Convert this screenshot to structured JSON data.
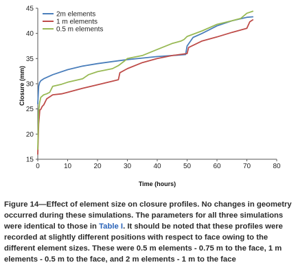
{
  "chart_data": {
    "type": "line",
    "title": "",
    "xlabel": "Time (hours)",
    "ylabel": "Closure (mm)",
    "xlim": [
      0,
      80
    ],
    "ylim": [
      15,
      45
    ],
    "xticks": [
      0,
      10,
      20,
      30,
      40,
      50,
      60,
      70,
      80
    ],
    "yticks": [
      15,
      20,
      25,
      30,
      35,
      40,
      45
    ],
    "grid": false,
    "legend_position": "top-left",
    "series": [
      {
        "name": "2m elements",
        "color": "#4a7ebb",
        "x": [
          0,
          0.3,
          0.6,
          1,
          2,
          5,
          10,
          15,
          20,
          25,
          30,
          35,
          40,
          45,
          49.5,
          50,
          52,
          55,
          60,
          65,
          70,
          72
        ],
        "y": [
          26,
          29.5,
          30.2,
          30.6,
          31,
          31.8,
          32.8,
          33.5,
          34,
          34.4,
          34.8,
          35.1,
          35.4,
          35.6,
          35.8,
          37.5,
          39.2,
          40,
          41.5,
          42.5,
          43.2,
          43.3
        ]
      },
      {
        "name": "1 m elements",
        "color": "#be4b48",
        "x": [
          0,
          0.3,
          0.7,
          1,
          1.5,
          2,
          3,
          5,
          8,
          10,
          15,
          20,
          25,
          27,
          27.5,
          30,
          35,
          40,
          45,
          50,
          50.5,
          55,
          60,
          65,
          70,
          71,
          72
        ],
        "y": [
          16,
          22,
          24.8,
          24.9,
          25.5,
          25.8,
          27,
          27.8,
          28,
          28.3,
          29.1,
          29.8,
          30.5,
          30.8,
          32.2,
          33,
          34.2,
          35,
          35.6,
          36,
          37.2,
          38.5,
          39.3,
          40.2,
          41,
          42.3,
          42.7
        ]
      },
      {
        "name": "0.5 m elements",
        "color": "#98b954",
        "x": [
          0,
          0.3,
          0.6,
          1,
          2,
          3,
          4,
          5,
          8,
          10,
          15,
          17,
          20,
          25,
          27,
          29,
          30,
          35,
          40,
          45,
          48,
          49,
          50,
          55,
          60,
          65,
          68,
          70,
          72
        ],
        "y": [
          17,
          24.5,
          26.2,
          27.3,
          27.8,
          28,
          28.3,
          29.5,
          29.9,
          30.3,
          31,
          31.8,
          32.4,
          33,
          33.6,
          34.5,
          35,
          35.6,
          36.8,
          38,
          38.5,
          38.8,
          39.4,
          40.5,
          41.8,
          42.5,
          43,
          44,
          44.4
        ]
      }
    ]
  },
  "caption": {
    "part1": "Figure 14—Effect of element size on closure profiles. No changes in geometry occurred during these simulations. The parameters for all three simulations were identical to those in ",
    "ref": "Table I",
    "part2": ". It should be noted that these profiles were recorded at slightly different positions with respect to face owing to the different element sizes. These were 0.5 m elements - 0.75 m to the face, 1 m elements - 0.5 m to the face, and 2 m elements - 1 m to the face"
  }
}
